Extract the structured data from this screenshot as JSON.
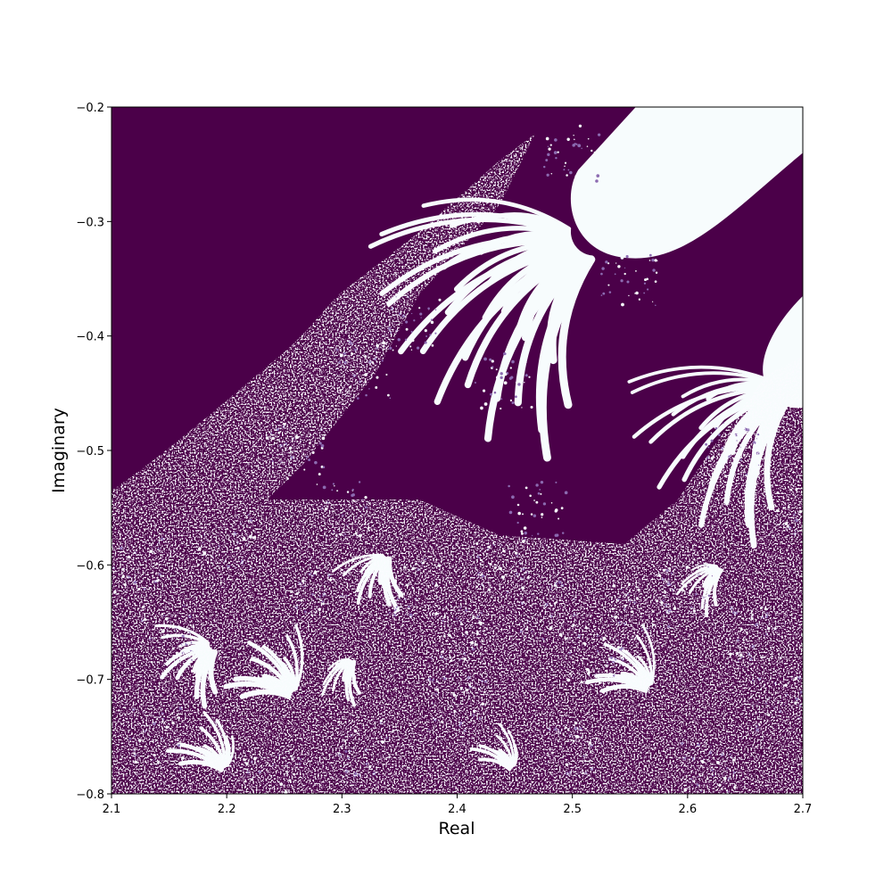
{
  "chart_data": {
    "type": "heatmap",
    "title": "",
    "xlabel": "Real",
    "ylabel": "Imaginary",
    "xlim": [
      2.1,
      2.7
    ],
    "ylim": [
      -0.8,
      -0.2
    ],
    "x_ticks": [
      2.1,
      2.2,
      2.3,
      2.4,
      2.5,
      2.6,
      2.7
    ],
    "x_tick_labels": [
      "2.1",
      "2.2",
      "2.3",
      "2.4",
      "2.5",
      "2.6",
      "2.7"
    ],
    "y_ticks": [
      -0.8,
      -0.7,
      -0.6,
      -0.5,
      -0.4,
      -0.3,
      -0.2
    ],
    "y_tick_labels": [
      "−0.8",
      "−0.7",
      "−0.6",
      "−0.5",
      "−0.4",
      "−0.3",
      "−0.2"
    ],
    "grid": false,
    "colormap": "BuPu",
    "colors": {
      "low": "#4b0049",
      "mid": "#8c6bb1",
      "high": "#f7fcfd"
    },
    "description_values": "binary-like fractal escape-time map: dark purple regions and white filament/bulb regions"
  }
}
